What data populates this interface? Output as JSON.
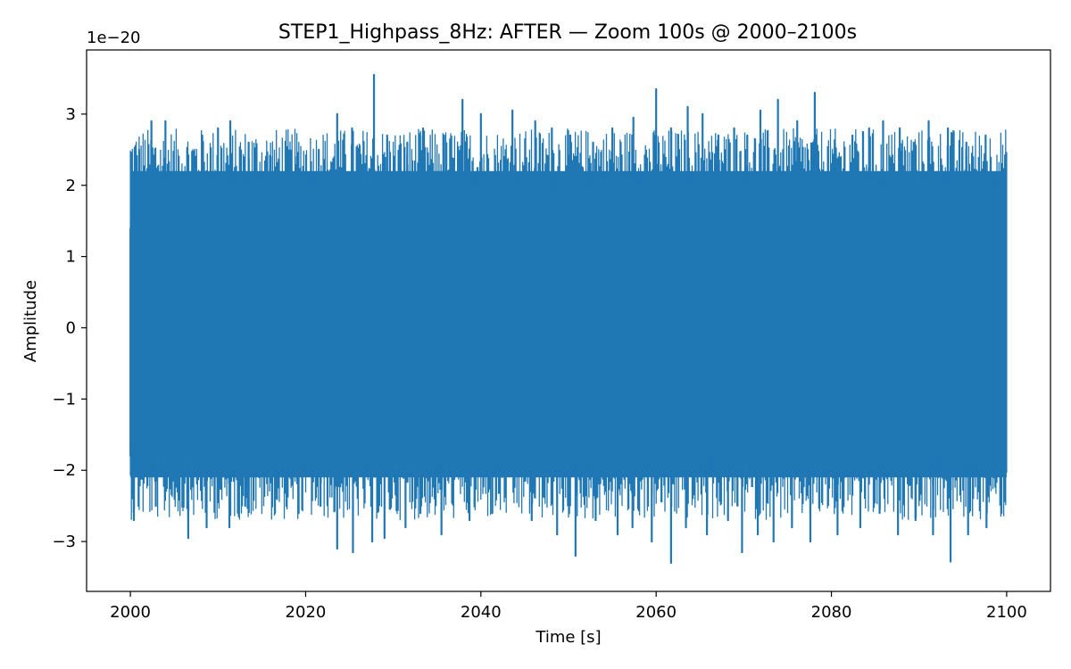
{
  "chart_data": {
    "type": "line",
    "title": "STEP1_Highpass_8Hz: AFTER — Zoom 100s @ 2000–2100s",
    "xlabel": "Time [s]",
    "ylabel": "Amplitude",
    "offset_text": "1e−20",
    "xlim": [
      1995,
      2105
    ],
    "ylim": [
      -3.7,
      3.9
    ],
    "y_scale_factor": 1e-20,
    "x_ticks": [
      2000,
      2020,
      2040,
      2060,
      2080,
      2100
    ],
    "x_tick_labels": [
      "2000",
      "2020",
      "2040",
      "2060",
      "2080",
      "2100"
    ],
    "y_ticks": [
      -3,
      -2,
      -1,
      0,
      1,
      2,
      3
    ],
    "y_tick_labels": [
      "−3",
      "−2",
      "−1",
      "0",
      "1",
      "2",
      "3"
    ],
    "grid": false,
    "legend": "none",
    "series": [
      {
        "color": "#1f77b4",
        "x_range": [
          2000,
          2100
        ],
        "band_max": 2.2,
        "band_min": -2.1,
        "peaks": [
          [
            2001,
            2.5
          ],
          [
            2002.4,
            2.9
          ],
          [
            2004,
            2.9
          ],
          [
            2006.5,
            2.5
          ],
          [
            2008.2,
            2.7
          ],
          [
            2010,
            2.8
          ],
          [
            2011.4,
            2.9
          ],
          [
            2013.5,
            2.6
          ],
          [
            2016,
            2.4
          ],
          [
            2019,
            2.4
          ],
          [
            2021.5,
            2.5
          ],
          [
            2023.6,
            3.0
          ],
          [
            2025.3,
            2.8
          ],
          [
            2027.8,
            3.55
          ],
          [
            2029.3,
            2.7
          ],
          [
            2031.6,
            2.6
          ],
          [
            2033.4,
            2.8
          ],
          [
            2035.8,
            2.7
          ],
          [
            2037.9,
            3.2
          ],
          [
            2040,
            3.0
          ],
          [
            2043.6,
            3.05
          ],
          [
            2046.2,
            2.9
          ],
          [
            2048.1,
            2.8
          ],
          [
            2050.2,
            2.7
          ],
          [
            2052.8,
            2.6
          ],
          [
            2055,
            2.8
          ],
          [
            2057.4,
            2.95
          ],
          [
            2060,
            3.35
          ],
          [
            2061.7,
            2.8
          ],
          [
            2063.6,
            3.1
          ],
          [
            2065.3,
            3.0
          ],
          [
            2067.1,
            2.7
          ],
          [
            2068.9,
            2.8
          ],
          [
            2070.4,
            2.7
          ],
          [
            2071.9,
            3.05
          ],
          [
            2073.9,
            3.2
          ],
          [
            2076.1,
            2.9
          ],
          [
            2078.1,
            3.3
          ],
          [
            2080.4,
            2.6
          ],
          [
            2082.4,
            2.7
          ],
          [
            2084.3,
            2.8
          ],
          [
            2085.9,
            2.9
          ],
          [
            2087.8,
            2.8
          ],
          [
            2089.4,
            2.6
          ],
          [
            2091.1,
            2.9
          ],
          [
            2093.3,
            2.8
          ],
          [
            2095.4,
            2.6
          ],
          [
            2097.6,
            2.7
          ],
          [
            2099.4,
            2.3
          ],
          [
            2000.4,
            -2.7
          ],
          [
            2002.9,
            -2.5
          ],
          [
            2006.6,
            -2.95
          ],
          [
            2008.7,
            -2.8
          ],
          [
            2011.3,
            -2.8
          ],
          [
            2013.1,
            -2.5
          ],
          [
            2016.5,
            -2.6
          ],
          [
            2019.2,
            -2.6
          ],
          [
            2021.7,
            -2.5
          ],
          [
            2023.6,
            -3.1
          ],
          [
            2025.4,
            -3.15
          ],
          [
            2027.6,
            -3.0
          ],
          [
            2029,
            -2.95
          ],
          [
            2031.4,
            -2.8
          ],
          [
            2033.1,
            -2.6
          ],
          [
            2035.5,
            -2.9
          ],
          [
            2038.7,
            -2.7
          ],
          [
            2041.3,
            -2.6
          ],
          [
            2045.8,
            -2.7
          ],
          [
            2048.7,
            -2.9
          ],
          [
            2050.8,
            -3.2
          ],
          [
            2053.1,
            -2.7
          ],
          [
            2055.6,
            -2.9
          ],
          [
            2057.3,
            -2.8
          ],
          [
            2059.5,
            -3.0
          ],
          [
            2061.7,
            -3.3
          ],
          [
            2063.4,
            -2.8
          ],
          [
            2065.8,
            -2.9
          ],
          [
            2068.2,
            -2.7
          ],
          [
            2069.8,
            -3.15
          ],
          [
            2071.6,
            -2.9
          ],
          [
            2073.4,
            -3.0
          ],
          [
            2075.5,
            -2.8
          ],
          [
            2077.6,
            -3.0
          ],
          [
            2080.7,
            -2.9
          ],
          [
            2083.3,
            -2.8
          ],
          [
            2085.5,
            -2.6
          ],
          [
            2087.6,
            -2.9
          ],
          [
            2089.6,
            -2.7
          ],
          [
            2091.6,
            -2.9
          ],
          [
            2093.6,
            -3.28
          ],
          [
            2095.6,
            -2.9
          ],
          [
            2097.7,
            -2.8
          ],
          [
            2099.4,
            -2.6
          ]
        ]
      }
    ]
  }
}
